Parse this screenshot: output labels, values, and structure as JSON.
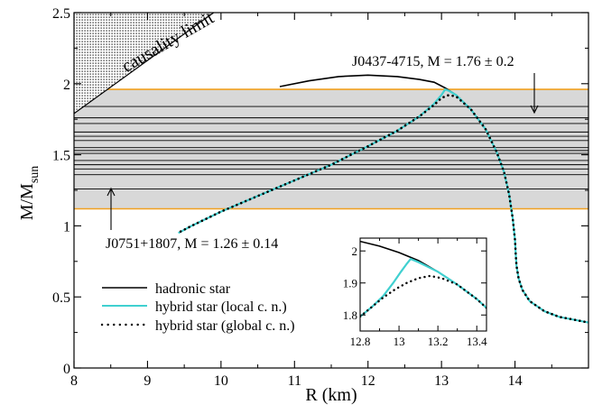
{
  "chart_data": [
    {
      "type": "line",
      "xlabel": "R (km)",
      "ylabel_main": "M/M",
      "ylabel_sub": "sun",
      "xlim": [
        8,
        15
      ],
      "ylim": [
        0,
        2.5
      ],
      "xticks": [
        8,
        9,
        10,
        11,
        12,
        13,
        14
      ],
      "xtick_labels": [
        "8",
        "9",
        "10",
        "11",
        "12",
        "13",
        "14"
      ],
      "yticks": [
        0,
        0.5,
        1,
        1.5,
        2,
        2.5
      ],
      "ytick_labels": [
        "0",
        "0.5",
        "1",
        "1.5",
        "2",
        "2.5"
      ],
      "grid": false,
      "legend_position": "bottom-left",
      "colors": {
        "hadronic": "#000000",
        "hybrid_local": "#40d0d0",
        "hybrid_global": "#000000",
        "bounds": "#f0a020",
        "band_lines": "#000000",
        "band_fill": "#d8d8d8"
      },
      "causality": {
        "label": "causality limit",
        "line": [
          [
            8.0,
            1.79
          ],
          [
            9.9,
            2.5
          ]
        ]
      },
      "observations": {
        "upper": {
          "label": "J0437-4715, M = 1.76 ± 0.2",
          "value": 1.96
        },
        "lower": {
          "label": "J0751+1807, M = 1.26 ± 0.14",
          "value": 1.12
        },
        "band_lines": [
          1.26,
          1.36,
          1.4,
          1.43,
          1.46,
          1.51,
          1.53,
          1.55,
          1.6,
          1.63,
          1.66,
          1.72,
          1.76,
          1.84
        ]
      },
      "series": [
        {
          "name": "hadronic star",
          "style": "solid",
          "x": [
            10.8,
            11.2,
            11.6,
            12.0,
            12.4,
            12.7,
            12.9,
            13.05,
            13.2,
            13.4,
            13.6,
            13.75,
            13.85,
            13.92,
            13.97,
            14.0,
            14.01,
            14.02,
            14.05,
            14.1,
            14.2,
            14.4,
            14.6,
            14.8,
            15.0
          ],
          "y": [
            1.98,
            2.02,
            2.05,
            2.06,
            2.05,
            2.03,
            2.01,
            1.97,
            1.92,
            1.82,
            1.68,
            1.52,
            1.38,
            1.22,
            1.05,
            0.9,
            0.8,
            0.72,
            0.63,
            0.55,
            0.47,
            0.4,
            0.36,
            0.34,
            0.32
          ]
        },
        {
          "name": "hybrid star (local c. n.)",
          "style": "solid",
          "x": [
            9.42,
            9.6,
            10.0,
            10.5,
            11.0,
            11.5,
            12.0,
            12.4,
            12.7,
            12.9,
            13.0,
            13.05,
            13.1,
            13.2,
            13.4,
            13.6,
            13.75,
            13.85,
            13.92,
            13.97,
            14.0,
            14.01,
            14.02,
            14.05,
            14.1,
            14.2,
            14.4,
            14.6,
            14.8,
            15.0
          ],
          "y": [
            0.95,
            1.0,
            1.1,
            1.21,
            1.32,
            1.43,
            1.56,
            1.67,
            1.77,
            1.86,
            1.92,
            1.96,
            1.95,
            1.92,
            1.82,
            1.68,
            1.52,
            1.38,
            1.22,
            1.05,
            0.9,
            0.8,
            0.72,
            0.63,
            0.55,
            0.47,
            0.4,
            0.36,
            0.34,
            0.32
          ]
        },
        {
          "name": "hybrid star (global c. n.)",
          "style": "dotted",
          "x": [
            9.45,
            9.6,
            10.0,
            10.5,
            11.0,
            11.5,
            12.0,
            12.4,
            12.7,
            12.9,
            13.0,
            13.1,
            13.2,
            13.4,
            13.6,
            13.75,
            13.85,
            13.92,
            13.97,
            14.0,
            14.01,
            14.02,
            14.05,
            14.1,
            14.2,
            14.4,
            14.6,
            14.8,
            15.0
          ],
          "y": [
            0.96,
            1.0,
            1.1,
            1.21,
            1.32,
            1.43,
            1.56,
            1.67,
            1.77,
            1.85,
            1.9,
            1.92,
            1.91,
            1.82,
            1.68,
            1.52,
            1.38,
            1.22,
            1.05,
            0.9,
            0.8,
            0.72,
            0.63,
            0.55,
            0.47,
            0.4,
            0.36,
            0.34,
            0.32
          ]
        }
      ]
    },
    {
      "type": "line",
      "xlim": [
        12.8,
        13.45
      ],
      "ylim": [
        1.75,
        2.04
      ],
      "xticks": [
        12.8,
        13.0,
        13.2,
        13.4
      ],
      "xtick_labels": [
        "12.8",
        "13",
        "13.2",
        "13.4"
      ],
      "minor_xticks": [
        12.9,
        13.1,
        13.3
      ],
      "yticks": [
        1.8,
        1.9,
        2.0
      ],
      "ytick_labels": [
        "1.8",
        "1.9",
        "2"
      ],
      "series": [
        {
          "name": "hadronic star",
          "style": "solid",
          "x": [
            12.8,
            12.9,
            13.0,
            13.1,
            13.2,
            13.3,
            13.4,
            13.45
          ],
          "y": [
            2.03,
            2.015,
            1.995,
            1.97,
            1.935,
            1.895,
            1.85,
            1.822
          ]
        },
        {
          "name": "hybrid star (local c. n.)",
          "style": "solid",
          "x": [
            12.8,
            12.86,
            12.92,
            12.97,
            13.01,
            13.04,
            13.06,
            13.1,
            13.2,
            13.3,
            13.4,
            13.45
          ],
          "y": [
            1.795,
            1.825,
            1.86,
            1.9,
            1.935,
            1.96,
            1.975,
            1.965,
            1.935,
            1.895,
            1.85,
            1.822
          ]
        },
        {
          "name": "hybrid star (global c. n.)",
          "style": "dotted",
          "x": [
            12.8,
            12.86,
            12.92,
            12.98,
            13.04,
            13.1,
            13.16,
            13.22,
            13.3,
            13.4,
            13.45
          ],
          "y": [
            1.795,
            1.825,
            1.855,
            1.88,
            1.9,
            1.915,
            1.922,
            1.915,
            1.895,
            1.85,
            1.822
          ]
        }
      ]
    }
  ]
}
